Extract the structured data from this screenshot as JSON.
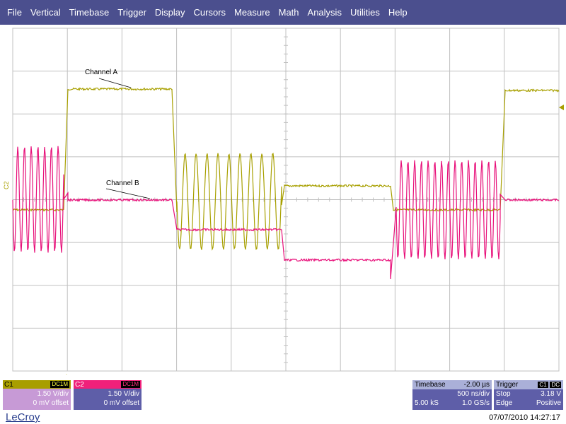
{
  "menu": [
    "File",
    "Vertical",
    "Timebase",
    "Trigger",
    "Display",
    "Cursors",
    "Measure",
    "Math",
    "Analysis",
    "Utilities",
    "Help"
  ],
  "annotations": {
    "channel_a": "Channel A",
    "channel_b": "Channel B"
  },
  "channel_marker": "C2",
  "colors": {
    "menubar": "#4b4f8e",
    "channel_a": "#a8a000",
    "channel_b": "#e8107a",
    "grid": "#c0c0c0",
    "panel": "#5e5ea8"
  },
  "c1": {
    "name": "C1",
    "coupling": "DC1M",
    "vdiv": "1.50 V/div",
    "offset": "0 mV offset"
  },
  "c2": {
    "name": "C2",
    "coupling": "DC1M",
    "vdiv": "1.50 V/div",
    "offset": "0 mV offset"
  },
  "timebase": {
    "label": "Timebase",
    "delay": "-2.00 µs",
    "tdiv": "500 ns/div",
    "samples": "5.00 kS",
    "rate": "1.0 GS/s"
  },
  "trigger": {
    "label": "Trigger",
    "source": "C1",
    "coupling": "DC",
    "mode": "Stop",
    "level": "3.18 V",
    "type": "Edge",
    "slope": "Positive"
  },
  "brand": "LeCroy",
  "datetime": "07/07/2010 14:27:17"
}
